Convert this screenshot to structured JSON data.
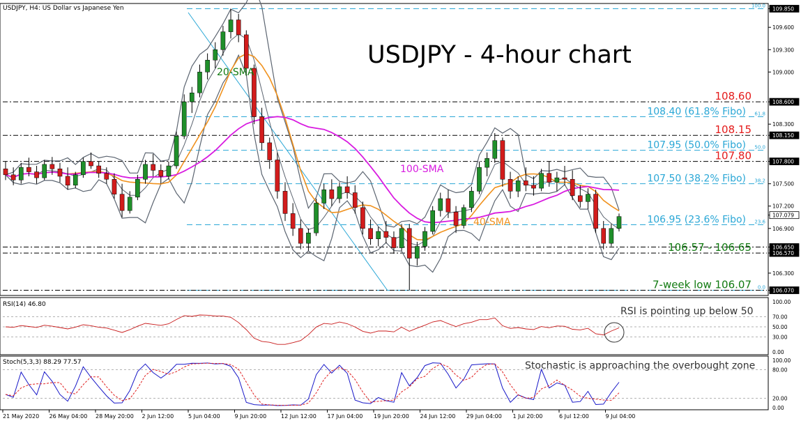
{
  "header": {
    "symbol_line": "USDJPY, H4:  US Dollar vs Japanese Yen",
    "chart_title": "USDJPY - 4-hour chart"
  },
  "chart_data": {
    "type": "line",
    "title": "USDJPY - 4-hour chart",
    "price_axis": {
      "ticks": [
        "109.850",
        "109.600",
        "109.300",
        "109.000",
        "108.600",
        "108.300",
        "108.150",
        "107.800",
        "107.500",
        "107.200",
        "107.079",
        "106.900",
        "106.650",
        "106.570",
        "106.300",
        "106.070"
      ],
      "range": [
        106.0,
        109.92
      ]
    },
    "time_axis": {
      "labels": [
        "21 May 2020",
        "26 May 04:00",
        "28 May 20:00",
        "2 Jun 12:00",
        "5 Jun 04:00",
        "9 Jun 20:00",
        "12 Jun 12:00",
        "17 Jun 04:00",
        "19 Jun 20:00",
        "24 Jun 12:00",
        "29 Jun 04:00",
        "1 Jul 20:00",
        "6 Jul 12:00",
        "9 Jul 04:00"
      ]
    },
    "levels": [
      {
        "value": 108.6,
        "label": "108.60",
        "color": "#e41b1b",
        "style": "dashdot"
      },
      {
        "value": 108.15,
        "label": "108.15",
        "color": "#e41b1b",
        "style": "dashdot"
      },
      {
        "value": 107.8,
        "label": "107.80",
        "color": "#e41b1b",
        "style": "dashdot"
      },
      {
        "value": 106.65,
        "label": "",
        "color": "#000000",
        "style": "dashdot"
      },
      {
        "value": 106.57,
        "label": "106.57 - 106.65",
        "color": "#117a11",
        "style": "dashdot"
      },
      {
        "value": 106.07,
        "label": "7-week low 106.07",
        "color": "#117a11",
        "style": "dashdot"
      }
    ],
    "fibonacci": [
      {
        "value": 109.85,
        "label": "",
        "ratio": "100.0"
      },
      {
        "value": 108.4,
        "label": "108.40 (61.8% Fibo)",
        "ratio": "61.8"
      },
      {
        "value": 107.95,
        "label": "107.95 (50.0% Fibo)",
        "ratio": "50.0"
      },
      {
        "value": 107.5,
        "label": "107.50 (38.2% Fibo)",
        "ratio": "38.2"
      },
      {
        "value": 106.95,
        "label": "106.95 (23.6% Fibo)",
        "ratio": "23.6"
      },
      {
        "value": 106.07,
        "label": "",
        "ratio": "0.0"
      }
    ],
    "fib_color": "#2aa7d6",
    "current_price": "107.079",
    "candles": [
      [
        107.7,
        107.8,
        107.55,
        107.62
      ],
      [
        107.62,
        107.72,
        107.48,
        107.55
      ],
      [
        107.55,
        107.78,
        107.5,
        107.72
      ],
      [
        107.72,
        107.85,
        107.6,
        107.66
      ],
      [
        107.66,
        107.74,
        107.5,
        107.58
      ],
      [
        107.58,
        107.82,
        107.55,
        107.76
      ],
      [
        107.76,
        107.86,
        107.62,
        107.7
      ],
      [
        107.7,
        107.78,
        107.52,
        107.6
      ],
      [
        107.6,
        107.72,
        107.42,
        107.48
      ],
      [
        107.48,
        107.66,
        107.44,
        107.62
      ],
      [
        107.62,
        107.85,
        107.58,
        107.8
      ],
      [
        107.8,
        107.92,
        107.7,
        107.74
      ],
      [
        107.74,
        107.8,
        107.58,
        107.64
      ],
      [
        107.64,
        107.72,
        107.5,
        107.56
      ],
      [
        107.56,
        107.64,
        107.3,
        107.36
      ],
      [
        107.36,
        107.5,
        107.05,
        107.14
      ],
      [
        107.14,
        107.4,
        107.1,
        107.32
      ],
      [
        107.32,
        107.62,
        107.28,
        107.56
      ],
      [
        107.56,
        107.82,
        107.5,
        107.76
      ],
      [
        107.76,
        107.9,
        107.6,
        107.68
      ],
      [
        107.68,
        107.76,
        107.5,
        107.6
      ],
      [
        107.6,
        107.8,
        107.56,
        107.74
      ],
      [
        107.74,
        108.2,
        107.7,
        108.14
      ],
      [
        108.14,
        108.7,
        108.1,
        108.6
      ],
      [
        108.6,
        108.8,
        108.45,
        108.72
      ],
      [
        108.72,
        109.1,
        108.66,
        109.0
      ],
      [
        109.0,
        109.25,
        108.9,
        109.16
      ],
      [
        109.16,
        109.4,
        109.05,
        109.3
      ],
      [
        109.3,
        109.62,
        109.22,
        109.54
      ],
      [
        109.54,
        109.85,
        109.45,
        109.7
      ],
      [
        109.7,
        109.78,
        109.4,
        109.5
      ],
      [
        109.5,
        109.56,
        108.95,
        109.05
      ],
      [
        109.05,
        109.1,
        108.3,
        108.4
      ],
      [
        108.4,
        108.52,
        107.95,
        108.05
      ],
      [
        108.05,
        108.12,
        107.7,
        107.82
      ],
      [
        107.82,
        107.92,
        107.3,
        107.4
      ],
      [
        107.4,
        107.52,
        107.0,
        107.1
      ],
      [
        107.1,
        107.24,
        106.8,
        106.9
      ],
      [
        106.9,
        107.02,
        106.62,
        106.7
      ],
      [
        106.7,
        106.9,
        106.6,
        106.84
      ],
      [
        106.84,
        107.3,
        106.8,
        107.24
      ],
      [
        107.24,
        107.5,
        107.16,
        107.42
      ],
      [
        107.42,
        107.56,
        107.2,
        107.3
      ],
      [
        107.3,
        107.52,
        107.24,
        107.46
      ],
      [
        107.46,
        107.6,
        107.3,
        107.38
      ],
      [
        107.38,
        107.48,
        107.1,
        107.18
      ],
      [
        107.18,
        107.26,
        106.82,
        106.9
      ],
      [
        106.9,
        107.02,
        106.68,
        106.76
      ],
      [
        106.76,
        106.92,
        106.66,
        106.86
      ],
      [
        106.86,
        107.0,
        106.7,
        106.78
      ],
      [
        106.78,
        106.86,
        106.56,
        106.64
      ],
      [
        106.64,
        106.96,
        106.6,
        106.9
      ],
      [
        106.9,
        106.96,
        106.07,
        106.5
      ],
      [
        106.5,
        106.72,
        106.4,
        106.66
      ],
      [
        106.66,
        106.92,
        106.6,
        106.86
      ],
      [
        106.86,
        107.2,
        106.82,
        107.14
      ],
      [
        107.14,
        107.38,
        107.06,
        107.3
      ],
      [
        107.3,
        107.42,
        107.04,
        107.12
      ],
      [
        107.12,
        107.2,
        106.84,
        106.94
      ],
      [
        106.94,
        107.22,
        106.9,
        107.18
      ],
      [
        107.18,
        107.46,
        107.12,
        107.4
      ],
      [
        107.4,
        107.8,
        107.36,
        107.72
      ],
      [
        107.72,
        107.92,
        107.6,
        107.84
      ],
      [
        107.84,
        108.18,
        107.78,
        108.08
      ],
      [
        108.08,
        108.12,
        107.46,
        107.56
      ],
      [
        107.56,
        107.66,
        107.3,
        107.4
      ],
      [
        107.4,
        107.6,
        107.32,
        107.54
      ],
      [
        107.54,
        107.72,
        107.4,
        107.48
      ],
      [
        107.48,
        107.6,
        107.34,
        107.44
      ],
      [
        107.44,
        107.7,
        107.4,
        107.64
      ],
      [
        107.64,
        107.8,
        107.46,
        107.52
      ],
      [
        107.52,
        107.66,
        107.4,
        107.58
      ],
      [
        107.58,
        107.74,
        107.48,
        107.56
      ],
      [
        107.56,
        107.68,
        107.28,
        107.34
      ],
      [
        107.34,
        107.48,
        107.18,
        107.26
      ],
      [
        107.26,
        107.44,
        107.16,
        107.36
      ],
      [
        107.36,
        107.42,
        106.84,
        106.9
      ],
      [
        106.9,
        107.0,
        106.62,
        106.7
      ],
      [
        106.7,
        106.96,
        106.66,
        106.9
      ],
      [
        106.9,
        107.1,
        106.86,
        107.06
      ]
    ],
    "indicators": {
      "sma20": {
        "name": "20-SMA",
        "color": "#117a11"
      },
      "sma40": {
        "name": "40-SMA",
        "color": "#f0921e"
      },
      "sma100": {
        "name": "100-SMA",
        "color": "#d81be0"
      },
      "bollinger_color": "#5b6470"
    },
    "rsi": {
      "label": "RSI(14) 46.80",
      "ticks": [
        "100.00",
        "70.00",
        "50.00",
        "30.00",
        "0.00"
      ],
      "color": "#c81818",
      "annotation": "RSI is pointing up below 50"
    },
    "stochastic": {
      "label": "Stoch(5,3,3) 88.29 77.57",
      "ticks": [
        "100.00",
        "80.00",
        "20.00",
        "0.00"
      ],
      "main_color": "#1818c8",
      "signal_color": "#e02020",
      "annotation": "Stochastic is approaching the overbought zone"
    }
  }
}
